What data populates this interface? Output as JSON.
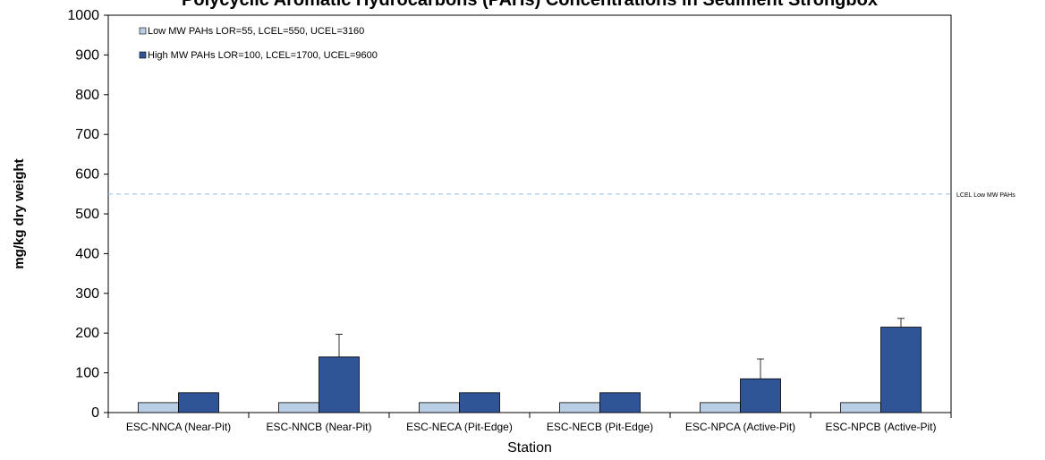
{
  "chart_data": {
    "type": "bar",
    "title": "Polycyclic Aromatic Hydrocarbons (PAHs) Concentrations in Sediment Strongbox",
    "xlabel": "Station",
    "ylabel": "mg/kg dry weight",
    "ylim": [
      0,
      1000
    ],
    "yticks": [
      0,
      100,
      200,
      300,
      400,
      500,
      600,
      700,
      800,
      900,
      1000
    ],
    "grid": false,
    "legend_position": "top-left",
    "categories": [
      "ESC-NNCA (Near-Pit)",
      "ESC-NNCB (Near-Pit)",
      "ESC-NECA (Pit-Edge)",
      "ESC-NECB (Pit-Edge)",
      "ESC-NPCA (Active-Pit)",
      "ESC-NPCB (Active-Pit)"
    ],
    "series": [
      {
        "name": "Low MW PAHs LOR=55, LCEL=550, UCEL=3160",
        "color": "#b9cde5",
        "values": [
          25,
          25,
          25,
          25,
          25,
          25
        ],
        "error": [
          0,
          0,
          0,
          0,
          0,
          0
        ]
      },
      {
        "name": "High MW PAHs LOR=100, LCEL=1700, UCEL=9600",
        "color": "#2f5597",
        "values": [
          50,
          140,
          50,
          50,
          85,
          215
        ],
        "error": [
          0,
          57,
          0,
          0,
          50,
          22
        ]
      }
    ],
    "reference_lines": [
      {
        "label": "LCEL Low MW PAHs",
        "value": 550,
        "color": "#9dc3e6"
      }
    ]
  }
}
